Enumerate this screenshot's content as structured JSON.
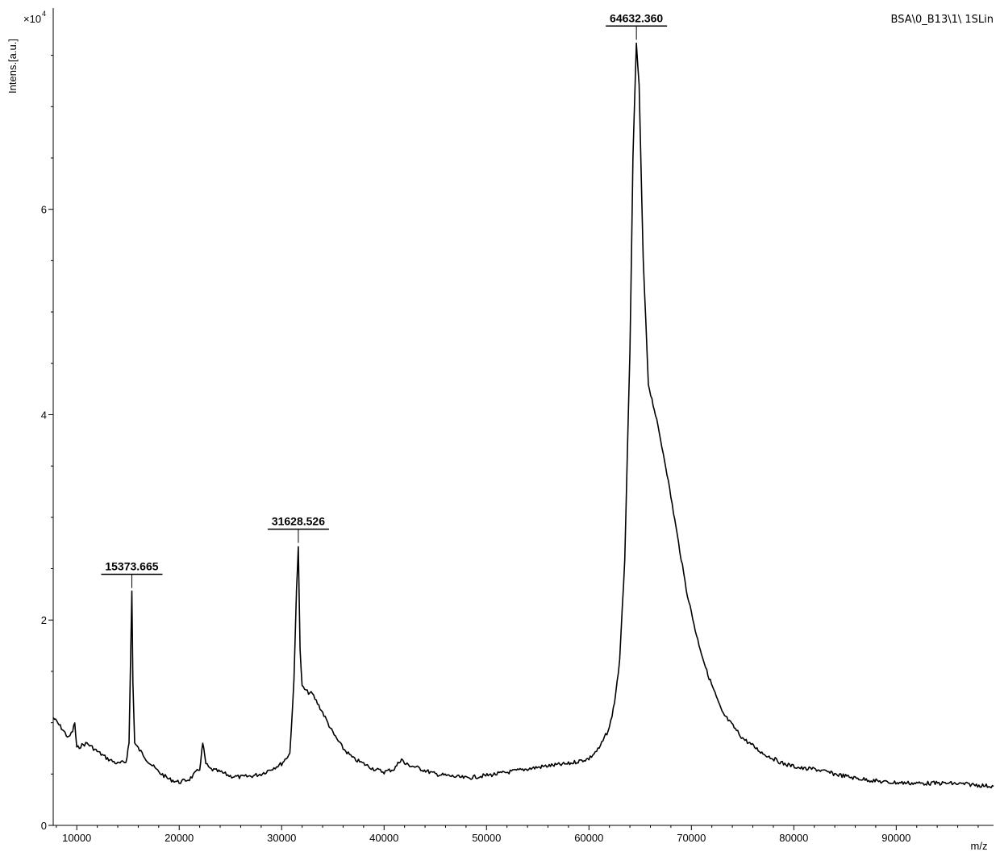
{
  "chart_data": {
    "type": "line",
    "sample_label": "BSA\\0_B13\\1\\ 1SLin",
    "xlabel": "m/z",
    "ylabel": "Intens.[a.u.]",
    "y_scale_text": "×10",
    "y_scale_exp": "4",
    "xlim": [
      7700,
      99500
    ],
    "ylim": [
      0,
      7.96
    ],
    "x_ticks": [
      10000,
      20000,
      30000,
      40000,
      50000,
      60000,
      70000,
      80000,
      90000
    ],
    "y_ticks": [
      0,
      2,
      4,
      6
    ],
    "peaks": [
      {
        "label": "15373.665",
        "x": 15373.665,
        "y": 2.28
      },
      {
        "label": "31628.526",
        "x": 31628.526,
        "y": 2.72
      },
      {
        "label": "64632.360",
        "x": 64632.36,
        "y": 7.62
      }
    ],
    "series": [
      {
        "x": [
          7700,
          8500,
          9200,
          9600,
          9800,
          10000,
          10500,
          11000,
          12000,
          13000,
          14000,
          14800,
          15100,
          15250,
          15373,
          15480,
          15650,
          16000,
          17000,
          18000,
          19000,
          20000,
          21000,
          22000,
          22300,
          22600,
          23000,
          24000,
          25000,
          26000,
          27000,
          28000,
          29000,
          30000,
          30800,
          31200,
          31450,
          31628,
          31800,
          32000,
          32500,
          33000,
          34000,
          35000,
          36000,
          37000,
          38000,
          39000,
          40000,
          41000,
          41700,
          42000,
          43000,
          45000,
          48000,
          51000,
          54000,
          56000,
          58000,
          60000,
          61000,
          62000,
          62500,
          63000,
          63500,
          64000,
          64300,
          64632,
          64900,
          65300,
          65800,
          66500,
          67500,
          68500,
          69500,
          70500,
          71500,
          73000,
          75000,
          77000,
          79000,
          81000,
          82000,
          84000,
          86000,
          89000,
          92000,
          95000,
          97000,
          99500
        ],
        "y": [
          1.05,
          0.95,
          0.85,
          0.92,
          1.0,
          0.75,
          0.78,
          0.8,
          0.72,
          0.65,
          0.6,
          0.62,
          0.8,
          1.6,
          2.28,
          1.4,
          0.8,
          0.75,
          0.62,
          0.52,
          0.45,
          0.42,
          0.45,
          0.55,
          0.8,
          0.6,
          0.55,
          0.52,
          0.48,
          0.47,
          0.48,
          0.5,
          0.55,
          0.6,
          0.7,
          1.4,
          2.3,
          2.72,
          1.7,
          1.35,
          1.3,
          1.28,
          1.1,
          0.9,
          0.75,
          0.65,
          0.6,
          0.55,
          0.52,
          0.55,
          0.65,
          0.6,
          0.57,
          0.5,
          0.46,
          0.5,
          0.55,
          0.58,
          0.6,
          0.65,
          0.75,
          0.95,
          1.2,
          1.6,
          2.6,
          4.6,
          6.5,
          7.62,
          7.2,
          5.5,
          4.3,
          4.0,
          3.5,
          2.9,
          2.3,
          1.85,
          1.5,
          1.1,
          0.85,
          0.7,
          0.6,
          0.55,
          0.55,
          0.5,
          0.46,
          0.42,
          0.41,
          0.41,
          0.4,
          0.38
        ]
      }
    ]
  }
}
